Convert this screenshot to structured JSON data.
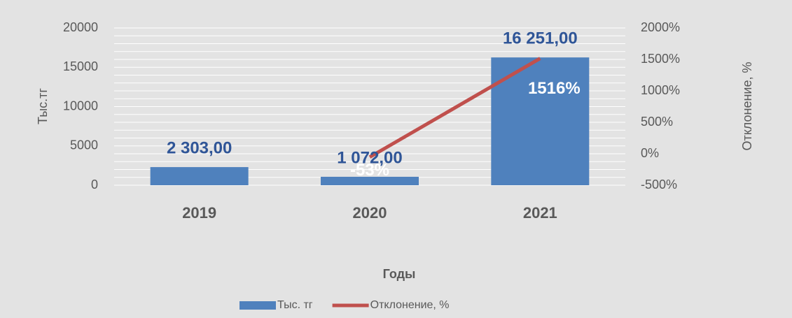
{
  "chart_data": {
    "type": "bar+line",
    "categories": [
      "2019",
      "2020",
      "2021"
    ],
    "x_label": "Годы",
    "y_label": "Тыс.тг",
    "y2_label": "Отклонение, %",
    "series": [
      {
        "name": "Тыс. тг",
        "type": "bar",
        "color": "#4f81bd",
        "values": [
          2303,
          1072,
          16251
        ],
        "value_labels": [
          "2 303,00",
          "1 072,00",
          "16 251,00"
        ]
      },
      {
        "name": "Отклонение, %",
        "type": "line",
        "axis": "y2",
        "color": "#c0504d",
        "values": [
          null,
          -53,
          1516
        ],
        "value_labels": [
          null,
          "-53%",
          "1516%"
        ]
      }
    ],
    "ylim": [
      0,
      20000
    ],
    "yticks": [
      0,
      5000,
      10000,
      15000,
      20000
    ],
    "y_minor_ticks": [
      1000,
      2000,
      3000,
      4000,
      6000,
      7000,
      8000,
      9000,
      11000,
      12000,
      13000,
      14000,
      16000,
      17000,
      18000,
      19000
    ],
    "y2lim": [
      -500,
      2000
    ],
    "y2ticks": [
      {
        "value": -500,
        "label": "-500%"
      },
      {
        "value": 0,
        "label": "0%"
      },
      {
        "value": 500,
        "label": "500%"
      },
      {
        "value": 1000,
        "label": "1000%"
      },
      {
        "value": 1500,
        "label": "1500%"
      },
      {
        "value": 2000,
        "label": "2000%"
      }
    ],
    "grid": true,
    "legend": "bottom"
  }
}
